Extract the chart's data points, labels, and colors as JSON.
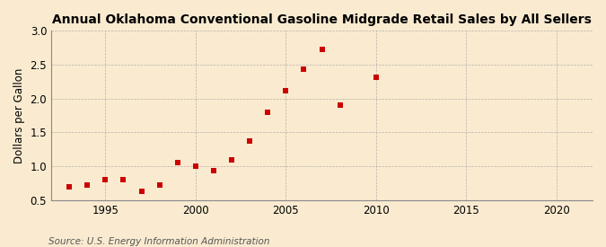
{
  "title": "Annual Oklahoma Conventional Gasoline Midgrade Retail Sales by All Sellers",
  "ylabel": "Dollars per Gallon",
  "source": "Source: U.S. Energy Information Administration",
  "years": [
    1993,
    1994,
    1995,
    1996,
    1997,
    1998,
    1999,
    2000,
    2001,
    2002,
    2003,
    2004,
    2005,
    2006,
    2007,
    2008,
    2010
  ],
  "values": [
    0.7,
    0.72,
    0.8,
    0.8,
    0.63,
    0.72,
    1.05,
    1.0,
    0.93,
    1.1,
    1.38,
    1.8,
    2.11,
    2.43,
    2.72,
    1.9,
    2.32
  ],
  "xlim": [
    1992,
    2022
  ],
  "ylim": [
    0.5,
    3.0
  ],
  "yticks": [
    0.5,
    1.0,
    1.5,
    2.0,
    2.5,
    3.0
  ],
  "xticks": [
    1995,
    2000,
    2005,
    2010,
    2015,
    2020
  ],
  "marker_color": "#cc0000",
  "marker": "s",
  "marker_size": 4,
  "bg_color": "#faebd0",
  "grid_color": "#999999",
  "title_fontsize": 10,
  "label_fontsize": 8.5,
  "tick_fontsize": 8.5,
  "source_fontsize": 7.5
}
